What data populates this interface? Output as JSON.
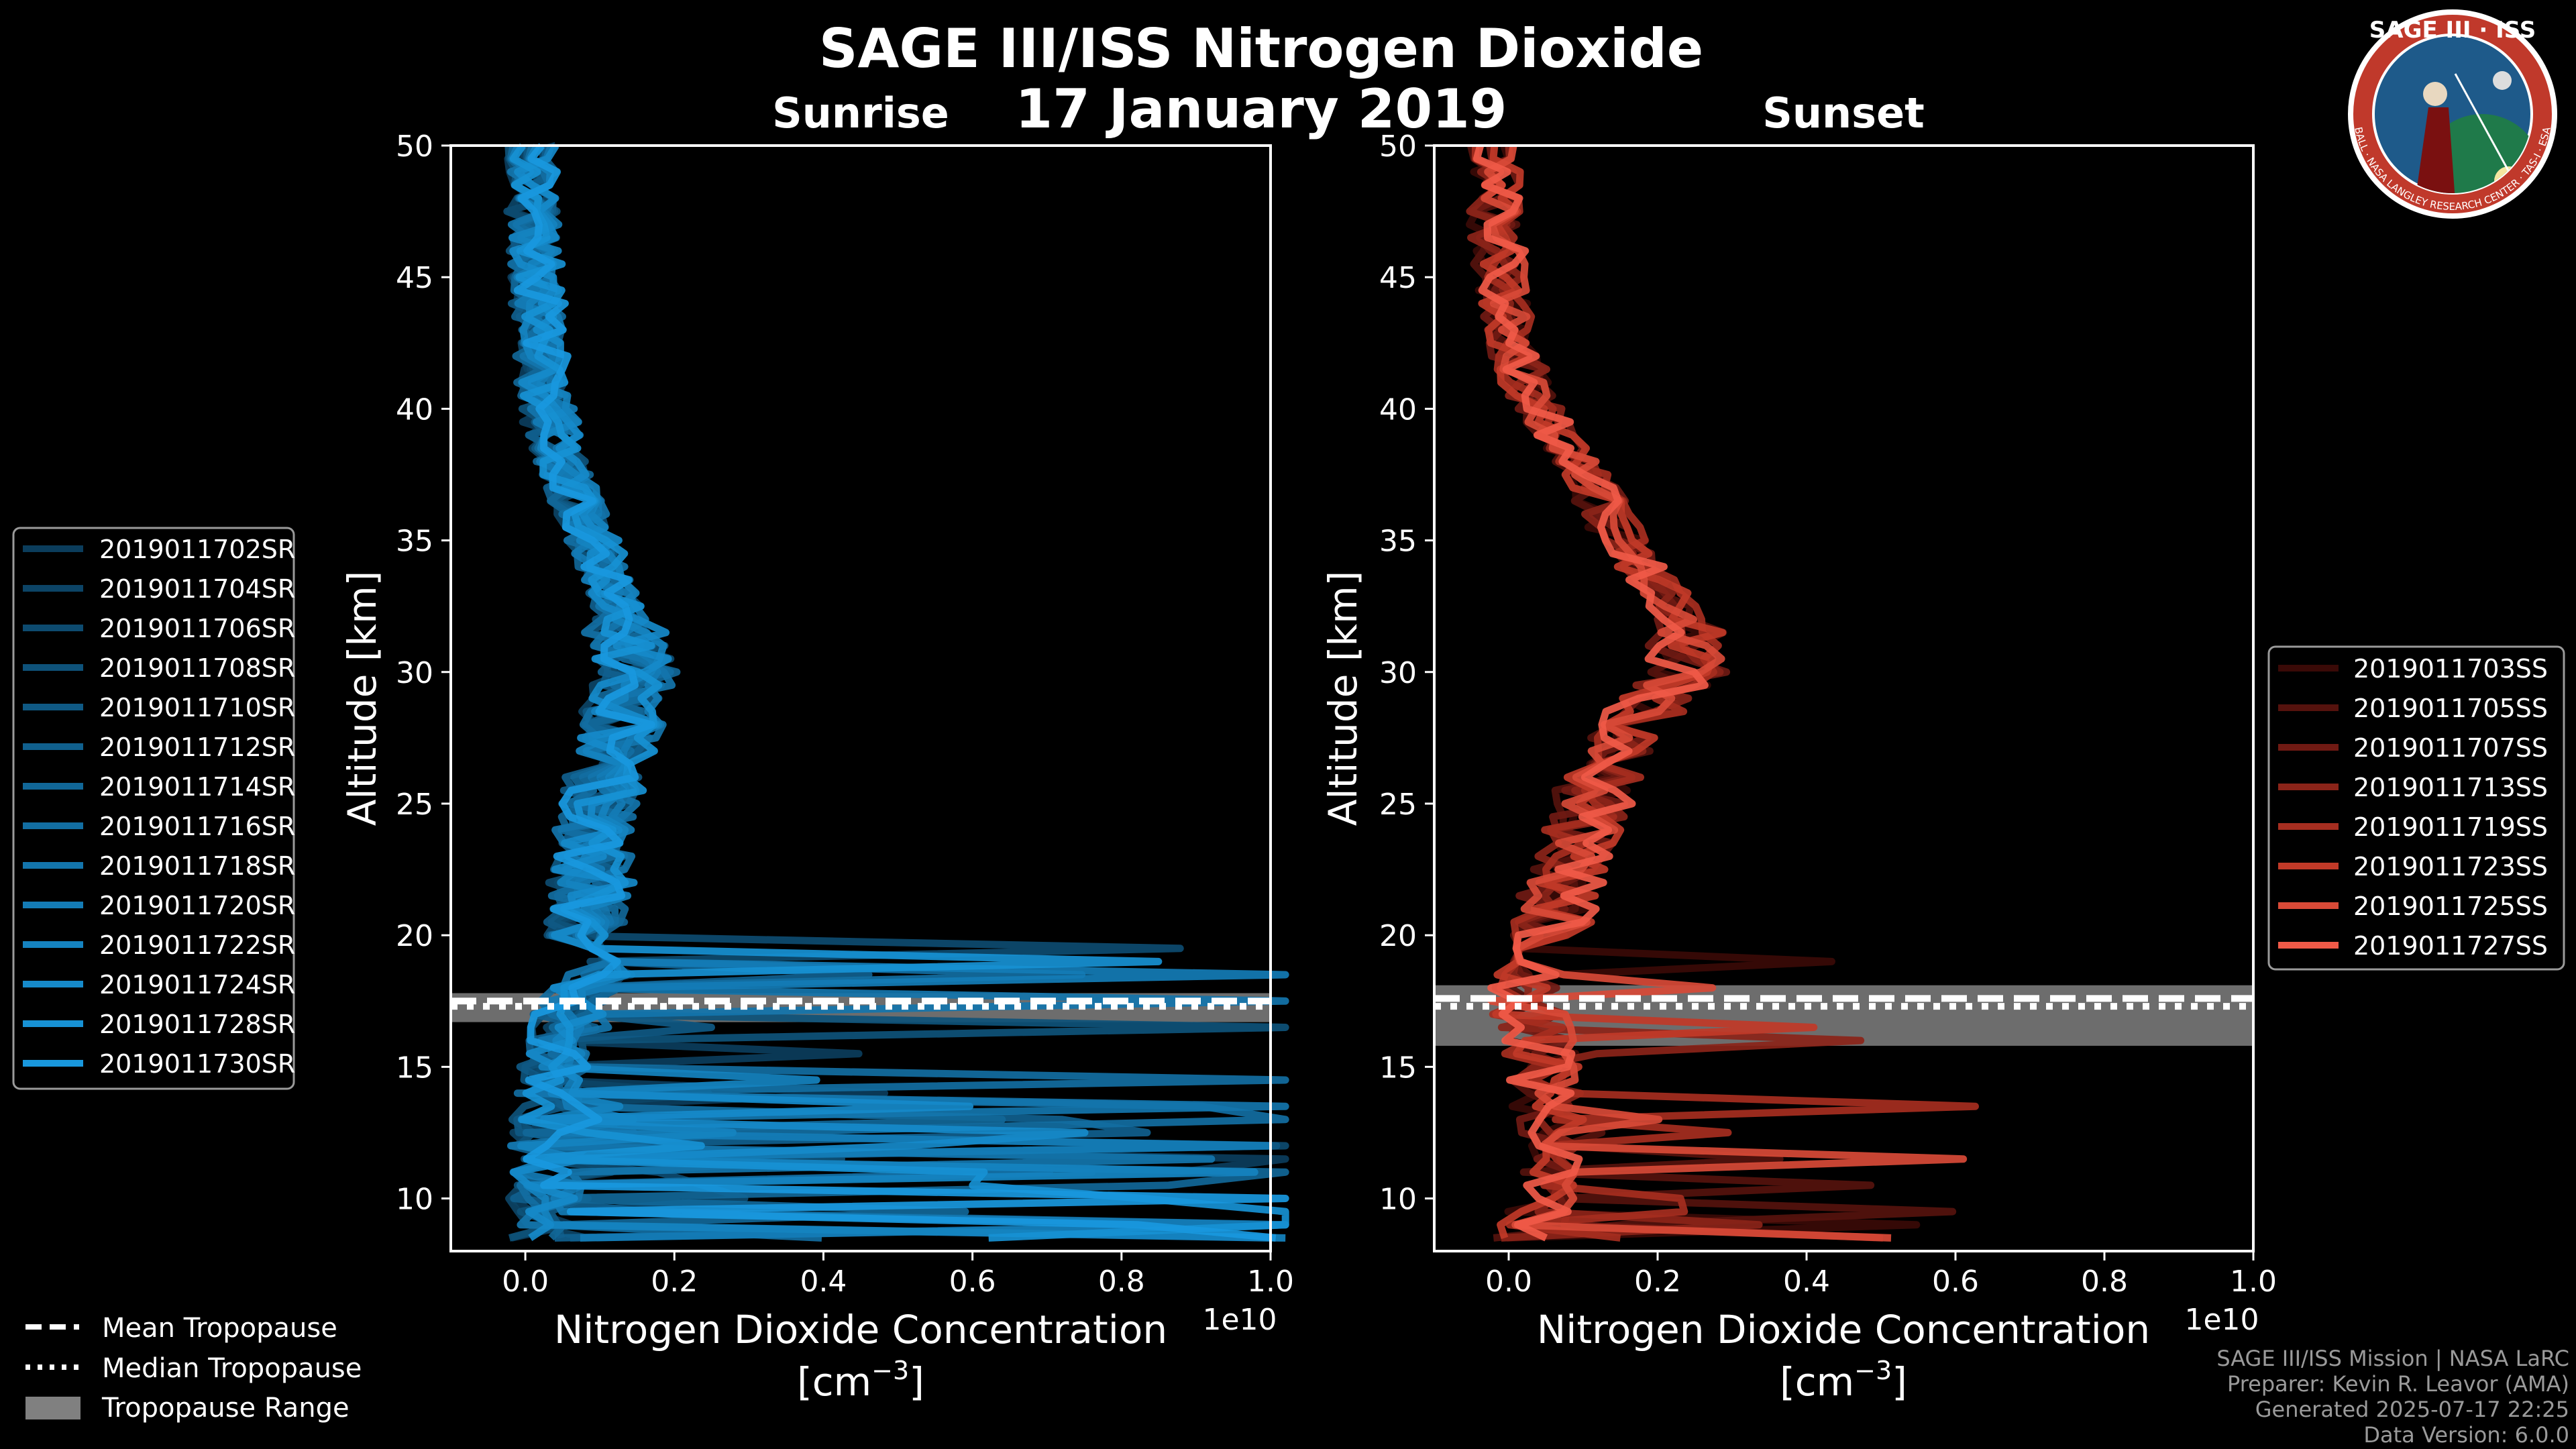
{
  "title": "SAGE III/ISS Nitrogen Dioxide",
  "date": "17 January 2019",
  "logo": {
    "top_text": "SAGE III · ISS",
    "ring_text": "BALL · NASA LANGLEY RESEARCH CENTER · TAS-I · ESA",
    "colors": {
      "ring": "#c0392b",
      "field": "#1e5a8a",
      "border": "#ffffff"
    }
  },
  "credits": {
    "line1": "SAGE III/ISS Mission | NASA LaRC",
    "line2": "Preparer: Kevin R. Leavor (AMA)",
    "line3": "Generated 2025-07-17 22:25",
    "line4": "Data Version: 6.0.0"
  },
  "tropopause_legend": {
    "mean": "Mean Tropopause",
    "median": "Median Tropopause",
    "range": "Tropopause Range",
    "range_color": "#808080"
  },
  "chart_data": [
    {
      "type": "line",
      "panel": "sunrise",
      "title": "Sunrise",
      "xlabel": "Nitrogen Dioxide Concentration",
      "xlabel_unit": "[cm",
      "xlabel_unit_sup": "−3",
      "xlabel_unit_end": "]",
      "xscale_label": "1e10",
      "ylabel": "Altitude [km]",
      "xlim": [
        -0.1,
        1.0
      ],
      "ylim": [
        8,
        50
      ],
      "xticks": [
        "0.0",
        "0.2",
        "0.4",
        "0.6",
        "0.8",
        "1.0"
      ],
      "yticks": [
        "10",
        "15",
        "20",
        "25",
        "30",
        "35",
        "40",
        "45",
        "50"
      ],
      "grid": false,
      "legend_placement": "outside-left",
      "tropopause": {
        "mean": 17.5,
        "median": 17.3,
        "range": [
          16.7,
          17.8
        ]
      },
      "colors": [
        "#0b3d5c",
        "#0c4466",
        "#0d4b70",
        "#0e527a",
        "#0f5984",
        "#10608e",
        "#116798",
        "#126ea2",
        "#1375ac",
        "#147cb6",
        "#1583c0",
        "#168aca",
        "#1791d4",
        "#1998de"
      ],
      "mean_profile": {
        "alt": [
          50,
          47,
          44,
          41,
          38,
          35,
          32,
          30,
          28,
          26,
          24,
          22,
          20,
          18.5,
          17.5,
          16.5,
          15.5,
          14,
          12,
          10,
          8.5
        ],
        "val": [
          0.002,
          0.003,
          0.006,
          0.012,
          0.04,
          0.08,
          0.12,
          0.14,
          0.12,
          0.1,
          0.08,
          0.08,
          0.07,
          0.09,
          0.06,
          0.04,
          0.03,
          0.03,
          0.02,
          0.02,
          0.02
        ]
      },
      "series": [
        {
          "name": "2019011702SR"
        },
        {
          "name": "2019011704SR"
        },
        {
          "name": "2019011706SR"
        },
        {
          "name": "2019011708SR"
        },
        {
          "name": "2019011710SR"
        },
        {
          "name": "2019011712SR"
        },
        {
          "name": "2019011714SR"
        },
        {
          "name": "2019011716SR"
        },
        {
          "name": "2019011718SR"
        },
        {
          "name": "2019011720SR"
        },
        {
          "name": "2019011722SR"
        },
        {
          "name": "2019011724SR"
        },
        {
          "name": "2019011728SR"
        },
        {
          "name": "2019011730SR"
        }
      ]
    },
    {
      "type": "line",
      "panel": "sunset",
      "title": "Sunset",
      "xlabel": "Nitrogen Dioxide Concentration",
      "xlabel_unit": "[cm",
      "xlabel_unit_sup": "−3",
      "xlabel_unit_end": "]",
      "xscale_label": "1e10",
      "ylabel": "Altitude [km]",
      "xlim": [
        -0.1,
        1.0
      ],
      "ylim": [
        8,
        50
      ],
      "xticks": [
        "0.0",
        "0.2",
        "0.4",
        "0.6",
        "0.8",
        "1.0"
      ],
      "yticks": [
        "10",
        "15",
        "20",
        "25",
        "30",
        "35",
        "40",
        "45",
        "50"
      ],
      "grid": false,
      "legend_placement": "outside-right",
      "tropopause": {
        "mean": 17.6,
        "median": 17.3,
        "range": [
          15.8,
          18.1
        ]
      },
      "colors": [
        "#3a0a07",
        "#55120d",
        "#701a13",
        "#8b2419",
        "#a62e20",
        "#c13a28",
        "#d84a37",
        "#f05a48"
      ],
      "mean_profile": {
        "alt": [
          50,
          47,
          44,
          41,
          38,
          35,
          32,
          30,
          28,
          26,
          24,
          22,
          20,
          18.5,
          17.5,
          16.5,
          15.5,
          14,
          12,
          10,
          8.5
        ],
        "val": [
          0.0,
          0.0,
          0.01,
          0.04,
          0.11,
          0.17,
          0.25,
          0.26,
          0.18,
          0.14,
          0.12,
          0.09,
          0.07,
          0.04,
          0.04,
          0.05,
          0.06,
          0.07,
          0.07,
          0.06,
          0.04
        ]
      },
      "series": [
        {
          "name": "2019011703SS"
        },
        {
          "name": "2019011705SS"
        },
        {
          "name": "2019011707SS"
        },
        {
          "name": "2019011713SS"
        },
        {
          "name": "2019011719SS"
        },
        {
          "name": "2019011723SS"
        },
        {
          "name": "2019011725SS"
        },
        {
          "name": "2019011727SS"
        }
      ]
    }
  ]
}
